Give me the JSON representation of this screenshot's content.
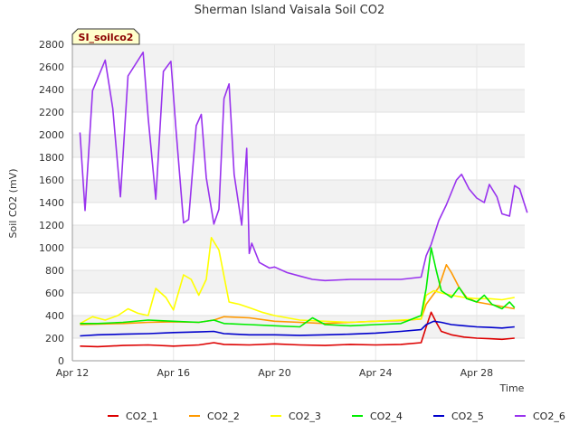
{
  "chart_data": {
    "type": "line",
    "title": "Sherman Island Vaisala Soil CO2",
    "xlabel": "Time",
    "ylabel": "Soil CO2 (mV)",
    "badge": "SI_soilco2",
    "ylim": [
      0,
      2800
    ],
    "yticks": [
      0,
      200,
      400,
      600,
      800,
      1000,
      1200,
      1400,
      1600,
      1800,
      2000,
      2200,
      2400,
      2600,
      2800
    ],
    "xlim": [
      12,
      29.9
    ],
    "xticks": [
      {
        "value": 12,
        "label": "Apr 12"
      },
      {
        "value": 16,
        "label": "Apr 16"
      },
      {
        "value": 20,
        "label": "Apr 20"
      },
      {
        "value": 24,
        "label": "Apr 24"
      },
      {
        "value": 28,
        "label": "Apr 28"
      }
    ],
    "grid": true,
    "legend_position": "bottom",
    "series": [
      {
        "name": "CO2_1",
        "color": "#dd0000",
        "points": [
          [
            12.3,
            130
          ],
          [
            13,
            125
          ],
          [
            14,
            135
          ],
          [
            15,
            140
          ],
          [
            16,
            130
          ],
          [
            17,
            140
          ],
          [
            17.6,
            160
          ],
          [
            18,
            145
          ],
          [
            19,
            140
          ],
          [
            20,
            150
          ],
          [
            21,
            140
          ],
          [
            22,
            135
          ],
          [
            23,
            145
          ],
          [
            24,
            140
          ],
          [
            25,
            145
          ],
          [
            25.8,
            160
          ],
          [
            26,
            300
          ],
          [
            26.2,
            430
          ],
          [
            26.4,
            340
          ],
          [
            26.6,
            260
          ],
          [
            27,
            230
          ],
          [
            27.5,
            210
          ],
          [
            28,
            200
          ],
          [
            28.5,
            195
          ],
          [
            29,
            190
          ],
          [
            29.5,
            200
          ]
        ]
      },
      {
        "name": "CO2_2",
        "color": "#ff9900",
        "points": [
          [
            12.3,
            320
          ],
          [
            13,
            325
          ],
          [
            14,
            330
          ],
          [
            15,
            340
          ],
          [
            16,
            345
          ],
          [
            17,
            340
          ],
          [
            17.6,
            360
          ],
          [
            18,
            390
          ],
          [
            19,
            380
          ],
          [
            20,
            350
          ],
          [
            21,
            340
          ],
          [
            22,
            330
          ],
          [
            23,
            340
          ],
          [
            24,
            350
          ],
          [
            25,
            355
          ],
          [
            25.8,
            370
          ],
          [
            26,
            500
          ],
          [
            26.2,
            560
          ],
          [
            26.5,
            650
          ],
          [
            26.8,
            850
          ],
          [
            27,
            780
          ],
          [
            27.3,
            650
          ],
          [
            27.6,
            560
          ],
          [
            28,
            520
          ],
          [
            28.5,
            500
          ],
          [
            29,
            480
          ],
          [
            29.5,
            460
          ]
        ]
      },
      {
        "name": "CO2_3",
        "color": "#ffff00",
        "points": [
          [
            12.3,
            330
          ],
          [
            12.8,
            390
          ],
          [
            13.3,
            360
          ],
          [
            13.8,
            400
          ],
          [
            14.2,
            460
          ],
          [
            14.6,
            420
          ],
          [
            15,
            400
          ],
          [
            15.3,
            640
          ],
          [
            15.7,
            560
          ],
          [
            16,
            450
          ],
          [
            16.4,
            760
          ],
          [
            16.7,
            720
          ],
          [
            17,
            580
          ],
          [
            17.3,
            720
          ],
          [
            17.5,
            1090
          ],
          [
            17.8,
            980
          ],
          [
            18,
            750
          ],
          [
            18.2,
            520
          ],
          [
            18.4,
            510
          ],
          [
            18.6,
            500
          ],
          [
            19,
            470
          ],
          [
            19.5,
            430
          ],
          [
            20,
            400
          ],
          [
            21,
            360
          ],
          [
            22,
            350
          ],
          [
            23,
            340
          ],
          [
            24,
            350
          ],
          [
            25,
            360
          ],
          [
            25.8,
            370
          ],
          [
            26,
            580
          ],
          [
            26.3,
            620
          ],
          [
            26.6,
            600
          ],
          [
            27,
            580
          ],
          [
            27.5,
            560
          ],
          [
            28,
            550
          ],
          [
            28.5,
            550
          ],
          [
            29,
            540
          ],
          [
            29.5,
            560
          ]
        ]
      },
      {
        "name": "CO2_4",
        "color": "#00ee00",
        "points": [
          [
            12.3,
            330
          ],
          [
            13,
            330
          ],
          [
            14,
            340
          ],
          [
            15,
            360
          ],
          [
            16,
            350
          ],
          [
            17,
            340
          ],
          [
            17.6,
            360
          ],
          [
            18,
            330
          ],
          [
            19,
            320
          ],
          [
            20,
            310
          ],
          [
            21,
            300
          ],
          [
            21.5,
            380
          ],
          [
            22,
            320
          ],
          [
            23,
            310
          ],
          [
            24,
            320
          ],
          [
            25,
            330
          ],
          [
            25.8,
            400
          ],
          [
            26,
            640
          ],
          [
            26.2,
            1000
          ],
          [
            26.4,
            800
          ],
          [
            26.6,
            620
          ],
          [
            27,
            560
          ],
          [
            27.3,
            650
          ],
          [
            27.6,
            550
          ],
          [
            28,
            520
          ],
          [
            28.3,
            580
          ],
          [
            28.6,
            500
          ],
          [
            29,
            460
          ],
          [
            29.3,
            520
          ],
          [
            29.5,
            470
          ]
        ]
      },
      {
        "name": "CO2_5",
        "color": "#0000cc",
        "points": [
          [
            12.3,
            220
          ],
          [
            13,
            230
          ],
          [
            14,
            235
          ],
          [
            15,
            240
          ],
          [
            16,
            250
          ],
          [
            17,
            255
          ],
          [
            17.6,
            260
          ],
          [
            18,
            240
          ],
          [
            19,
            230
          ],
          [
            20,
            230
          ],
          [
            21,
            225
          ],
          [
            22,
            230
          ],
          [
            23,
            235
          ],
          [
            24,
            245
          ],
          [
            25,
            260
          ],
          [
            25.8,
            275
          ],
          [
            26,
            320
          ],
          [
            26.3,
            350
          ],
          [
            26.6,
            340
          ],
          [
            27,
            320
          ],
          [
            27.5,
            310
          ],
          [
            28,
            300
          ],
          [
            28.5,
            295
          ],
          [
            29,
            290
          ],
          [
            29.5,
            300
          ]
        ]
      },
      {
        "name": "CO2_6",
        "color": "#9933ee",
        "points": [
          [
            12.3,
            2020
          ],
          [
            12.5,
            1330
          ],
          [
            12.8,
            2390
          ],
          [
            13.3,
            2660
          ],
          [
            13.6,
            2230
          ],
          [
            13.9,
            1450
          ],
          [
            14.2,
            2520
          ],
          [
            14.8,
            2730
          ],
          [
            15,
            2150
          ],
          [
            15.3,
            1430
          ],
          [
            15.6,
            2560
          ],
          [
            15.9,
            2650
          ],
          [
            16.1,
            2050
          ],
          [
            16.4,
            1220
          ],
          [
            16.6,
            1250
          ],
          [
            16.9,
            2080
          ],
          [
            17.1,
            2180
          ],
          [
            17.3,
            1620
          ],
          [
            17.6,
            1210
          ],
          [
            17.8,
            1340
          ],
          [
            18,
            2320
          ],
          [
            18.2,
            2450
          ],
          [
            18.4,
            1650
          ],
          [
            18.7,
            1200
          ],
          [
            18.9,
            1880
          ],
          [
            19,
            950
          ],
          [
            19.1,
            1040
          ],
          [
            19.4,
            870
          ],
          [
            19.8,
            820
          ],
          [
            20,
            830
          ],
          [
            20.5,
            780
          ],
          [
            21,
            750
          ],
          [
            21.5,
            720
          ],
          [
            22,
            710
          ],
          [
            23,
            720
          ],
          [
            24,
            720
          ],
          [
            25,
            720
          ],
          [
            25.8,
            740
          ],
          [
            26,
            930
          ],
          [
            26.2,
            1030
          ],
          [
            26.5,
            1240
          ],
          [
            26.8,
            1380
          ],
          [
            27.2,
            1600
          ],
          [
            27.4,
            1650
          ],
          [
            27.7,
            1520
          ],
          [
            28,
            1440
          ],
          [
            28.3,
            1400
          ],
          [
            28.5,
            1560
          ],
          [
            28.8,
            1450
          ],
          [
            29,
            1300
          ],
          [
            29.3,
            1280
          ],
          [
            29.5,
            1550
          ],
          [
            29.7,
            1520
          ],
          [
            30,
            1310
          ]
        ]
      }
    ]
  }
}
